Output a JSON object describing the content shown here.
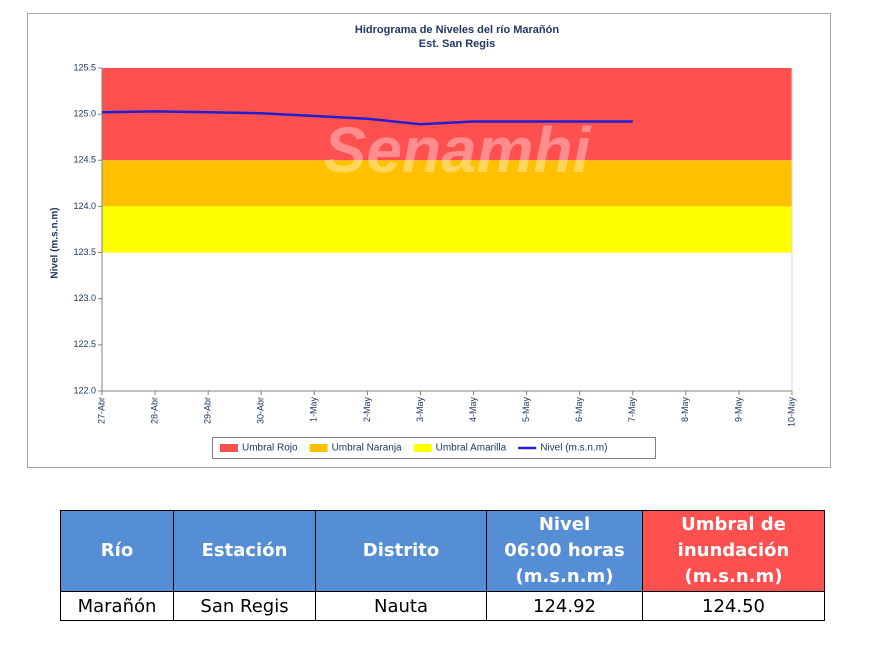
{
  "chart_data": {
    "type": "line",
    "title": "Hidrograma de Niveles del río Marañón",
    "subtitle": "Est. San Regis",
    "ylabel": "Nivel (m.s.n.m)",
    "watermark": "Senamhi",
    "categories": [
      "27-Abr",
      "28-Abr",
      "29-Abr",
      "30-Abr",
      "1-May",
      "2-May",
      "3-May",
      "4-May",
      "5-May",
      "6-May",
      "7-May",
      "8-May",
      "9-May",
      "10-May"
    ],
    "bands": [
      {
        "name": "Umbral Rojo",
        "color": "#ff5050",
        "range": [
          124.5,
          125.5
        ]
      },
      {
        "name": "Umbral Naranja",
        "color": "#ffc000",
        "range": [
          124.0,
          124.5
        ]
      },
      {
        "name": "Umbral Amarilla",
        "color": "#ffff00",
        "range": [
          123.5,
          124.0
        ]
      }
    ],
    "series": [
      {
        "name": "Nivel (m.s.n.m)",
        "color": "#1f1fd0",
        "values": [
          125.02,
          125.03,
          125.02,
          125.01,
          124.98,
          124.95,
          124.89,
          124.92,
          124.92,
          124.92,
          124.92,
          null,
          null,
          null
        ]
      }
    ],
    "ylim": [
      122,
      125.5
    ],
    "yticks": [
      {
        "value": 122,
        "label": "122.0"
      },
      122.5,
      {
        "value": 123,
        "label": "123.0"
      },
      123.5,
      {
        "value": 124,
        "label": "124.0"
      },
      124.5,
      {
        "value": 125,
        "label": "125.0"
      },
      125.5
    ],
    "grid": false
  },
  "table": {
    "header": [
      [
        "Río"
      ],
      [
        "Estación"
      ],
      [
        "Distrito"
      ],
      [
        "Nivel",
        "06:00 horas",
        "(m.s.n.m)"
      ],
      [
        "Umbral de",
        "inundación",
        "(m.s.n.m)"
      ]
    ],
    "rows": [
      [
        "Marañón",
        "San Regis",
        "Nauta",
        "124.92",
        "124.50"
      ]
    ]
  }
}
